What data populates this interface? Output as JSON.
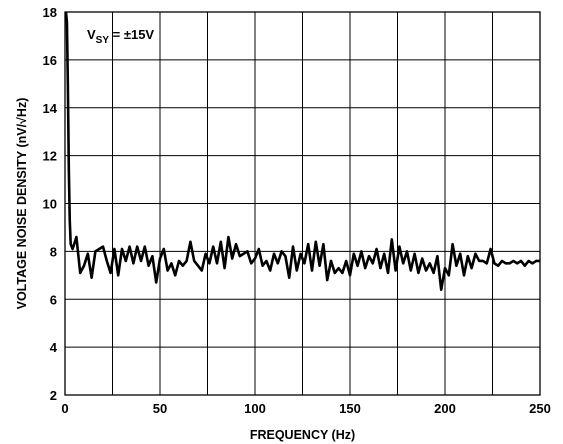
{
  "chart_data": {
    "type": "line",
    "title": "",
    "xlabel": "FREQUENCY (Hz)",
    "ylabel": "VOLTAGE NOISE DENSITY (nV/√Hz)",
    "xlim": [
      0,
      250
    ],
    "ylim": [
      2,
      18
    ],
    "grid": true,
    "x_ticks": [
      "0",
      "50",
      "100",
      "150",
      "200",
      "250"
    ],
    "y_ticks": [
      "2",
      "4",
      "6",
      "8",
      "10",
      "12",
      "14",
      "16",
      "18"
    ],
    "annotation": {
      "prefix": "V",
      "subscript": "SY",
      "suffix": " = ±15V"
    },
    "series": [
      {
        "x": [
          0.5,
          1,
          1.5,
          2,
          2.5,
          3,
          4,
          6,
          8,
          10,
          12,
          14,
          16,
          18,
          20,
          22,
          24,
          26,
          28,
          30,
          32,
          34,
          36,
          38,
          40,
          42,
          44,
          46,
          48,
          50,
          52,
          54,
          56,
          58,
          60,
          62,
          64,
          66,
          68,
          70,
          72,
          74,
          76,
          78,
          80,
          82,
          84,
          86,
          88,
          90,
          92,
          94,
          96,
          98,
          100,
          102,
          104,
          106,
          108,
          110,
          112,
          114,
          116,
          118,
          120,
          122,
          124,
          126,
          128,
          130,
          132,
          134,
          136,
          138,
          140,
          142,
          144,
          146,
          148,
          150,
          152,
          154,
          156,
          158,
          160,
          162,
          164,
          166,
          168,
          170,
          172,
          174,
          176,
          178,
          180,
          182,
          184,
          186,
          188,
          190,
          192,
          194,
          196,
          198,
          200,
          202,
          204,
          206,
          208,
          210,
          212,
          214,
          216,
          218,
          220,
          222,
          224,
          226,
          228,
          230,
          232,
          234,
          236,
          238,
          240,
          242,
          244,
          246,
          248,
          250
        ],
        "y": [
          18,
          17.6,
          15,
          11.5,
          9.3,
          8.3,
          8.1,
          8.6,
          7.1,
          7.4,
          7.9,
          6.9,
          8.0,
          8.1,
          8.2,
          7.6,
          7.1,
          8.1,
          7.0,
          8.1,
          7.6,
          8.2,
          7.5,
          8.2,
          7.6,
          8.2,
          7.4,
          7.8,
          6.7,
          7.7,
          8.1,
          7.2,
          7.5,
          7.0,
          7.6,
          7.4,
          7.6,
          8.4,
          7.6,
          7.4,
          7.2,
          7.9,
          7.5,
          8.2,
          7.5,
          8.4,
          7.3,
          8.6,
          7.7,
          8.3,
          7.8,
          7.9,
          8.0,
          7.5,
          7.7,
          8.1,
          7.4,
          7.6,
          7.2,
          7.9,
          7.5,
          8.0,
          7.8,
          6.9,
          8.2,
          7.2,
          7.9,
          7.5,
          8.3,
          7.2,
          8.4,
          7.4,
          8.3,
          6.8,
          7.6,
          7.1,
          7.3,
          7.1,
          7.6,
          7.0,
          7.9,
          7.4,
          8.0,
          7.3,
          7.8,
          7.5,
          8.1,
          7.3,
          7.9,
          7.1,
          8.5,
          7.2,
          8.2,
          7.5,
          8.0,
          7.2,
          7.9,
          7.1,
          7.7,
          7.2,
          7.5,
          7.1,
          7.8,
          6.4,
          7.3,
          7.0,
          8.3,
          7.4,
          7.9,
          7.0,
          7.8,
          7.3,
          7.9,
          7.6,
          7.6,
          7.5,
          8.1,
          7.5,
          7.4,
          7.6,
          7.5,
          7.5,
          7.6,
          7.5,
          7.6,
          7.4,
          7.6,
          7.5,
          7.6,
          7.6
        ]
      }
    ]
  }
}
